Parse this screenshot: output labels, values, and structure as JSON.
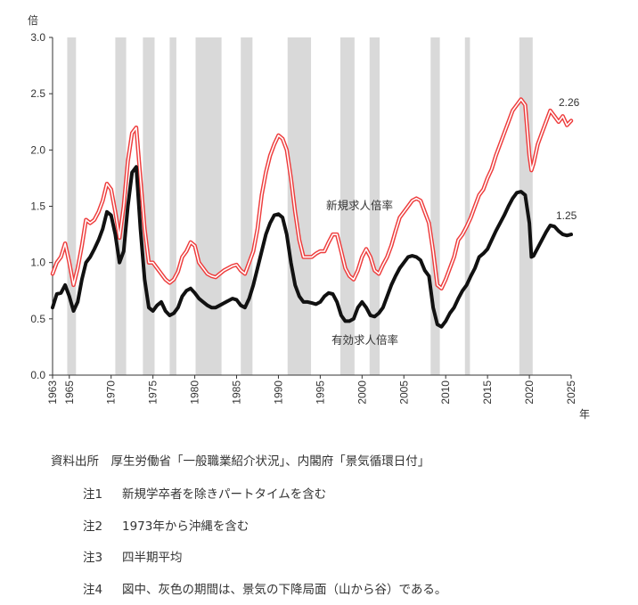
{
  "chart_data": {
    "type": "line",
    "y_unit_label": "倍",
    "x_unit_label": "年",
    "ylim": [
      0.0,
      3.0
    ],
    "y_ticks": [
      "0.0",
      "0.5",
      "1.0",
      "1.5",
      "2.0",
      "2.5",
      "3.0"
    ],
    "xlim": [
      1963,
      2025
    ],
    "x_ticks": [
      "1963",
      "1965",
      "1970",
      "1975",
      "1980",
      "1985",
      "1990",
      "1995",
      "2000",
      "2005",
      "2010",
      "2015",
      "2020",
      "2025"
    ],
    "recessions": [
      [
        1964.75,
        1965.8
      ],
      [
        1970.5,
        1971.8
      ],
      [
        1973.8,
        1975.2
      ],
      [
        1977.0,
        1977.8
      ],
      [
        1980.1,
        1983.2
      ],
      [
        1985.5,
        1986.9
      ],
      [
        1991.1,
        1993.9
      ],
      [
        1997.4,
        1999.1
      ],
      [
        2000.9,
        2002.1
      ],
      [
        2008.2,
        2009.3
      ],
      [
        2012.3,
        2012.9
      ],
      [
        2018.8,
        2020.4
      ]
    ],
    "series": [
      {
        "name": "新規求人倍率",
        "color": "#ee3c3c",
        "end_label": "2.26",
        "x": [
          1963.0,
          1963.5,
          1964.0,
          1964.5,
          1965.0,
          1965.5,
          1966.0,
          1966.5,
          1967.0,
          1967.5,
          1968.0,
          1968.5,
          1969.0,
          1969.5,
          1970.0,
          1970.5,
          1971.0,
          1971.5,
          1972.0,
          1972.5,
          1973.0,
          1973.5,
          1974.0,
          1974.5,
          1975.0,
          1975.5,
          1976.0,
          1976.5,
          1977.0,
          1977.5,
          1978.0,
          1978.5,
          1979.0,
          1979.5,
          1980.0,
          1980.5,
          1981.0,
          1981.5,
          1982.0,
          1982.5,
          1983.0,
          1983.5,
          1984.0,
          1984.5,
          1985.0,
          1985.5,
          1986.0,
          1986.5,
          1987.0,
          1987.5,
          1988.0,
          1988.5,
          1989.0,
          1989.5,
          1990.0,
          1990.5,
          1991.0,
          1991.5,
          1992.0,
          1992.5,
          1993.0,
          1993.5,
          1994.0,
          1994.5,
          1995.0,
          1995.5,
          1996.0,
          1996.5,
          1997.0,
          1997.5,
          1998.0,
          1998.5,
          1999.0,
          1999.5,
          2000.0,
          2000.5,
          2001.0,
          2001.5,
          2002.0,
          2002.5,
          2003.0,
          2003.5,
          2004.0,
          2004.5,
          2005.0,
          2005.5,
          2006.0,
          2006.5,
          2007.0,
          2007.5,
          2008.0,
          2008.5,
          2009.0,
          2009.5,
          2010.0,
          2010.5,
          2011.0,
          2011.5,
          2012.0,
          2012.5,
          2013.0,
          2013.5,
          2014.0,
          2014.5,
          2015.0,
          2015.5,
          2016.0,
          2016.5,
          2017.0,
          2017.5,
          2018.0,
          2018.5,
          2019.0,
          2019.5,
          2020.0,
          2020.25,
          2020.5,
          2021.0,
          2021.5,
          2022.0,
          2022.5,
          2023.0,
          2023.5,
          2024.0,
          2024.5,
          2025.0
        ],
        "y": [
          0.9,
          1.0,
          1.05,
          1.17,
          1.0,
          0.8,
          0.95,
          1.15,
          1.38,
          1.35,
          1.38,
          1.45,
          1.55,
          1.7,
          1.65,
          1.45,
          1.22,
          1.5,
          1.9,
          2.15,
          2.2,
          1.75,
          1.3,
          1.0,
          1.0,
          0.95,
          0.9,
          0.85,
          0.82,
          0.85,
          0.92,
          1.05,
          1.1,
          1.18,
          1.15,
          1.0,
          0.95,
          0.9,
          0.88,
          0.87,
          0.9,
          0.93,
          0.95,
          0.97,
          0.98,
          0.93,
          0.9,
          1.0,
          1.1,
          1.3,
          1.6,
          1.8,
          1.95,
          2.05,
          2.13,
          2.1,
          2.0,
          1.75,
          1.45,
          1.2,
          1.05,
          1.05,
          1.05,
          1.08,
          1.1,
          1.1,
          1.18,
          1.25,
          1.25,
          1.1,
          0.95,
          0.88,
          0.85,
          0.93,
          1.05,
          1.12,
          1.05,
          0.93,
          0.9,
          0.98,
          1.05,
          1.15,
          1.28,
          1.4,
          1.45,
          1.5,
          1.55,
          1.57,
          1.55,
          1.45,
          1.35,
          1.1,
          0.8,
          0.77,
          0.85,
          0.95,
          1.05,
          1.2,
          1.25,
          1.32,
          1.4,
          1.5,
          1.6,
          1.65,
          1.75,
          1.83,
          1.95,
          2.05,
          2.15,
          2.25,
          2.35,
          2.4,
          2.45,
          2.4,
          1.95,
          1.82,
          1.88,
          2.05,
          2.15,
          2.25,
          2.35,
          2.3,
          2.25,
          2.3,
          2.22,
          2.26
        ]
      },
      {
        "name": "有効求人倍率",
        "color": "#111111",
        "end_label": "1.25",
        "x": [
          1963.0,
          1963.5,
          1964.0,
          1964.5,
          1965.0,
          1965.5,
          1966.0,
          1966.5,
          1967.0,
          1967.5,
          1968.0,
          1968.5,
          1969.0,
          1969.5,
          1970.0,
          1970.5,
          1971.0,
          1971.5,
          1972.0,
          1972.5,
          1973.0,
          1973.5,
          1974.0,
          1974.5,
          1975.0,
          1975.5,
          1976.0,
          1976.5,
          1977.0,
          1977.5,
          1978.0,
          1978.5,
          1979.0,
          1979.5,
          1980.0,
          1980.5,
          1981.0,
          1981.5,
          1982.0,
          1982.5,
          1983.0,
          1983.5,
          1984.0,
          1984.5,
          1985.0,
          1985.5,
          1986.0,
          1986.5,
          1987.0,
          1987.5,
          1988.0,
          1988.5,
          1989.0,
          1989.5,
          1990.0,
          1990.5,
          1991.0,
          1991.5,
          1992.0,
          1992.5,
          1993.0,
          1993.5,
          1994.0,
          1994.5,
          1995.0,
          1995.5,
          1996.0,
          1996.5,
          1997.0,
          1997.5,
          1998.0,
          1998.5,
          1999.0,
          1999.5,
          2000.0,
          2000.5,
          2001.0,
          2001.5,
          2002.0,
          2002.5,
          2003.0,
          2003.5,
          2004.0,
          2004.5,
          2005.0,
          2005.5,
          2006.0,
          2006.5,
          2007.0,
          2007.5,
          2008.0,
          2008.5,
          2009.0,
          2009.5,
          2010.0,
          2010.5,
          2011.0,
          2011.5,
          2012.0,
          2012.5,
          2013.0,
          2013.5,
          2014.0,
          2014.5,
          2015.0,
          2015.5,
          2016.0,
          2016.5,
          2017.0,
          2017.5,
          2018.0,
          2018.5,
          2019.0,
          2019.5,
          2020.0,
          2020.25,
          2020.5,
          2021.0,
          2021.5,
          2022.0,
          2022.5,
          2023.0,
          2023.5,
          2024.0,
          2024.5,
          2025.0
        ],
        "y": [
          0.6,
          0.72,
          0.73,
          0.8,
          0.7,
          0.57,
          0.65,
          0.85,
          1.0,
          1.05,
          1.12,
          1.2,
          1.3,
          1.45,
          1.42,
          1.25,
          1.0,
          1.1,
          1.5,
          1.8,
          1.85,
          1.3,
          0.85,
          0.6,
          0.57,
          0.62,
          0.65,
          0.57,
          0.53,
          0.55,
          0.6,
          0.7,
          0.75,
          0.77,
          0.73,
          0.68,
          0.65,
          0.62,
          0.6,
          0.6,
          0.62,
          0.64,
          0.66,
          0.68,
          0.67,
          0.62,
          0.6,
          0.68,
          0.8,
          0.95,
          1.1,
          1.25,
          1.35,
          1.42,
          1.43,
          1.4,
          1.25,
          1.0,
          0.8,
          0.7,
          0.65,
          0.65,
          0.64,
          0.63,
          0.65,
          0.7,
          0.73,
          0.72,
          0.65,
          0.53,
          0.48,
          0.48,
          0.5,
          0.6,
          0.65,
          0.6,
          0.53,
          0.52,
          0.55,
          0.6,
          0.7,
          0.8,
          0.88,
          0.95,
          1.0,
          1.05,
          1.06,
          1.05,
          1.02,
          0.93,
          0.88,
          0.6,
          0.45,
          0.43,
          0.48,
          0.55,
          0.6,
          0.68,
          0.75,
          0.8,
          0.88,
          0.95,
          1.05,
          1.08,
          1.12,
          1.2,
          1.28,
          1.35,
          1.42,
          1.5,
          1.57,
          1.62,
          1.63,
          1.6,
          1.35,
          1.05,
          1.06,
          1.13,
          1.2,
          1.27,
          1.33,
          1.32,
          1.28,
          1.25,
          1.24,
          1.25
        ]
      }
    ],
    "annotations": [
      "新規求人倍率",
      "有効求人倍率"
    ]
  },
  "notes": {
    "source": "資料出所　厚生労働省「一般職業紹介状況」、内閣府「景気循環日付」",
    "items": [
      {
        "label": "注1",
        "text": "新規学卒者を除きパートタイムを含む"
      },
      {
        "label": "注2",
        "text": "1973年から沖縄を含む"
      },
      {
        "label": "注3",
        "text": "四半期平均"
      },
      {
        "label": "注4",
        "text": "図中、灰色の期間は、景気の下降局面（山から谷）である。"
      }
    ]
  }
}
